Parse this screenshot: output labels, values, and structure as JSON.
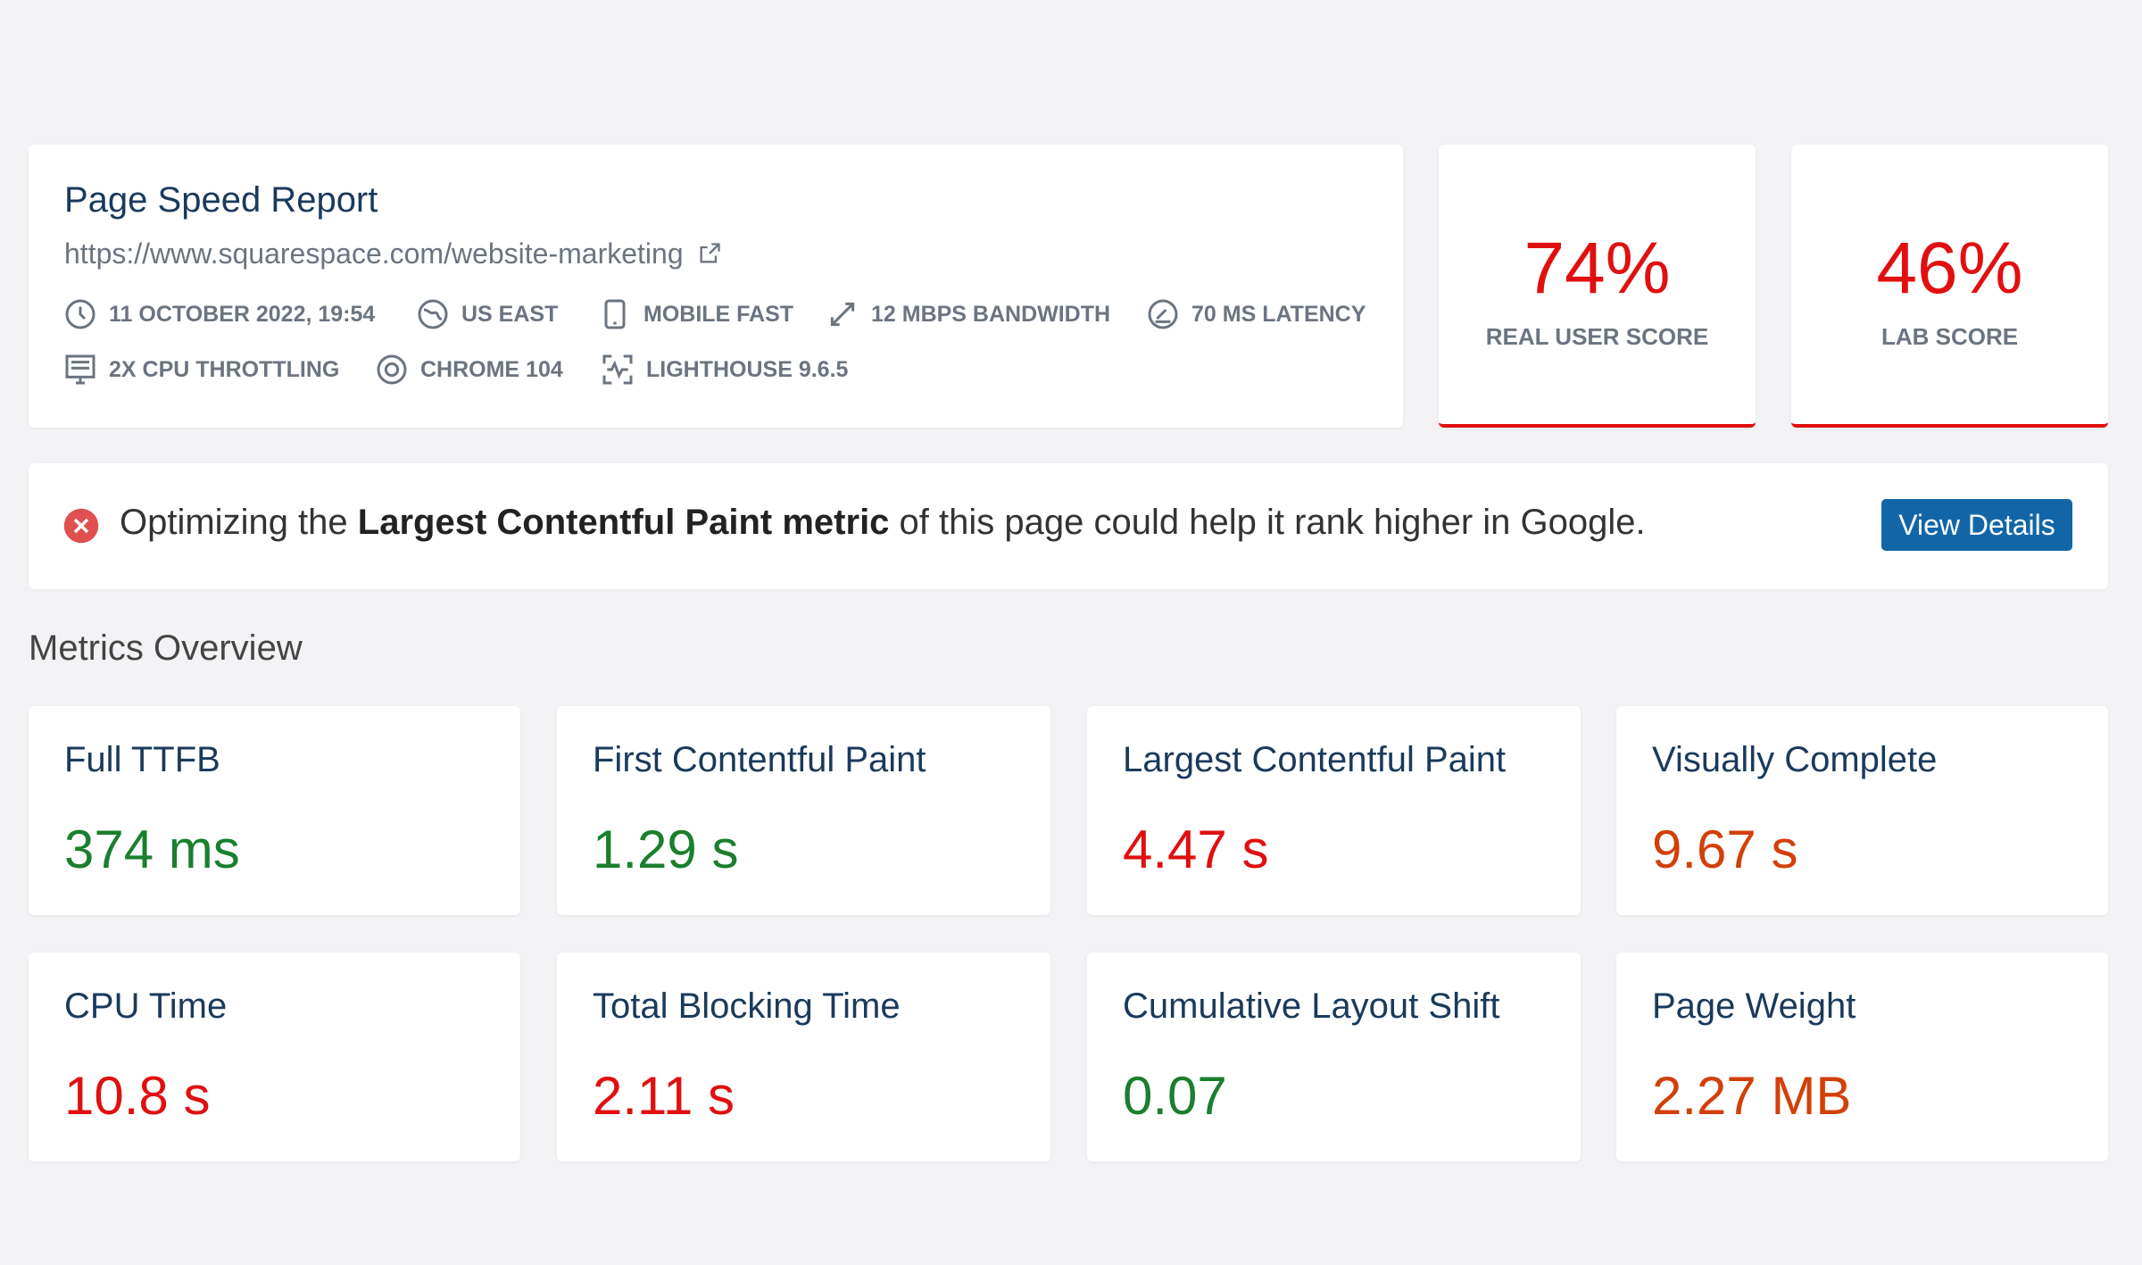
{
  "header": {
    "title": "Page Speed Report",
    "url": "https://www.squarespace.com/website-marketing",
    "meta": [
      "11 OCTOBER 2022, 19:54",
      "US EAST",
      "MOBILE FAST",
      "12 MBPS BANDWIDTH",
      "70 MS LATENCY",
      "2X CPU THROTTLING",
      "CHROME 104",
      "LIGHTHOUSE 9.6.5"
    ]
  },
  "scores": [
    {
      "value": "74%",
      "label": "REAL USER SCORE"
    },
    {
      "value": "46%",
      "label": "LAB SCORE"
    }
  ],
  "alert": {
    "text_before": "Optimizing the",
    "emphasis": "Largest Contentful Paint metric",
    "text_after": "of this page could help it rank higher in Google.",
    "button": "View Details"
  },
  "section_title": "Metrics Overview",
  "metrics": [
    {
      "label": "Full TTFB",
      "value": "374 ms"
    },
    {
      "label": "First Contentful Paint",
      "value": "1.29 s"
    },
    {
      "label": "Largest Contentful Paint",
      "value": "4.47 s"
    },
    {
      "label": "Visually Complete",
      "value": "9.67 s"
    },
    {
      "label": "CPU Time",
      "value": "10.8 s"
    },
    {
      "label": "Total Blocking Time",
      "value": "2.11 s"
    },
    {
      "label": "Cumulative Layout Shift",
      "value": "0.07"
    },
    {
      "label": "Page Weight",
      "value": "2.27 MB"
    }
  ]
}
